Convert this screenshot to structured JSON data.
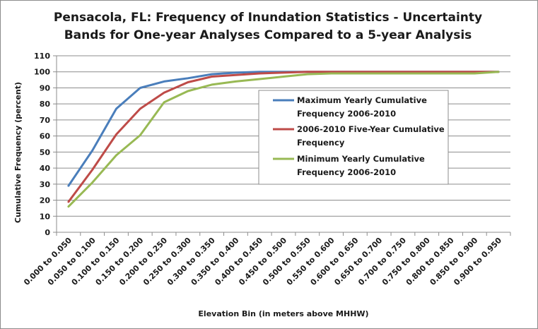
{
  "chart_data": {
    "type": "line",
    "title": "Pensacola, FL: Frequency of Inundation Statistics - Uncertainty",
    "subtitle": "Bands for One-year Analyses Compared to a 5-year Analysis",
    "xlabel": "Elevation Bin (in meters above MHHW)",
    "ylabel": "Cumulative Frequency (percent)",
    "ylim": [
      0,
      110
    ],
    "yticks": [
      0,
      10,
      20,
      30,
      40,
      50,
      60,
      70,
      80,
      90,
      100,
      110
    ],
    "grid": "horizontal",
    "legend_position": "center-right",
    "categories": [
      "0.000 to 0.050",
      "0.050 to 0.100",
      "0.100 to 0.150",
      "0.150 to 0.200",
      "0.200 to 0.250",
      "0.250 to 0.300",
      "0.300 to 0.350",
      "0.350 to 0.400",
      "0.400 to 0.450",
      "0.450 to 0.500",
      "0.500 to 0.550",
      "0.550 to 0.600",
      "0.600 to 0.650",
      "0.650 to 0.700",
      "0.700 to 0.750",
      "0.750 to 0.800",
      "0.800 to 0.850",
      "0.850 to 0.900",
      "0.900 to 0.950"
    ],
    "series": [
      {
        "name": "Maximum Yearly Cumulative Frequency 2006-2010",
        "legend_lines": [
          "Maximum Yearly Cumulative",
          "Frequency 2006-2010"
        ],
        "color": "#4a7ebb",
        "values": [
          29,
          51,
          77,
          90,
          94,
          96,
          98.5,
          99.5,
          100,
          100,
          100,
          100,
          100,
          100,
          100,
          100,
          100,
          100,
          100
        ]
      },
      {
        "name": "2006-2010 Five-Year Cumulative Frequency",
        "legend_lines": [
          "2006-2010 Five-Year Cumulative",
          "Frequency"
        ],
        "color": "#be4b48",
        "values": [
          19,
          39,
          61,
          77,
          87,
          93.5,
          97,
          98,
          99,
          99.5,
          100,
          100,
          100,
          100,
          100,
          100,
          100,
          100,
          100
        ]
      },
      {
        "name": "Minimum Yearly Cumulative Frequency 2006-2010",
        "legend_lines": [
          "Minimum Yearly Cumulative",
          "Frequency 2006-2010"
        ],
        "color": "#98b954",
        "values": [
          16,
          31,
          48,
          60.5,
          81,
          88,
          92,
          94,
          95.5,
          97,
          98.5,
          99,
          99,
          99,
          99,
          99,
          99,
          99,
          100
        ]
      }
    ]
  }
}
